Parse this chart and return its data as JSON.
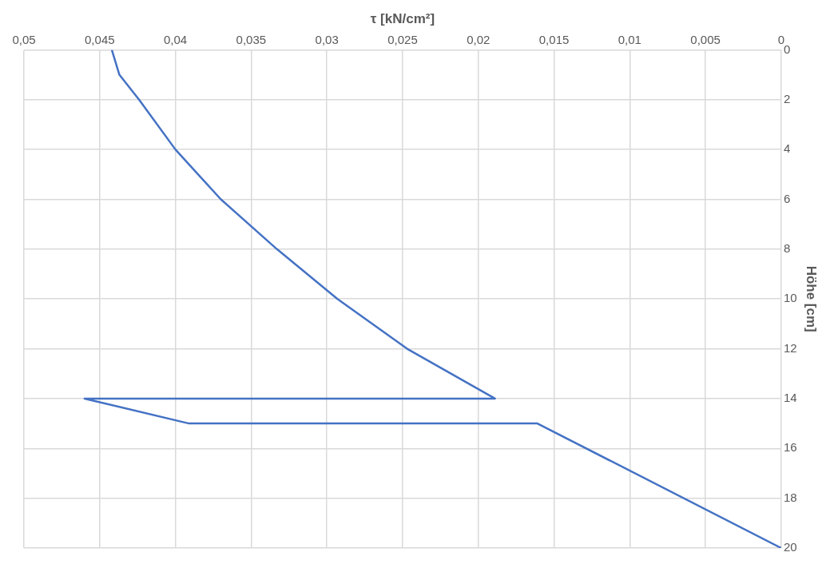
{
  "chart_data": {
    "type": "line",
    "xlabel": "τ [kN/cm²]",
    "ylabel": "Höhe [cm]",
    "x": [
      0.0442,
      0.0437,
      0.0424,
      0.04,
      0.037,
      0.0333,
      0.0293,
      0.0247,
      0.0189,
      0.046,
      0.0391,
      0.0161,
      0
    ],
    "series": [
      {
        "color": "#4472c4",
        "values": [
          0,
          1,
          2,
          4,
          6,
          8,
          10,
          12,
          14,
          14,
          15,
          15,
          20
        ]
      }
    ],
    "xlim": [
      0.05,
      0
    ],
    "ylim": [
      20,
      0
    ],
    "xticks": [
      {
        "value": 0.05,
        "label": "0,05"
      },
      {
        "value": 0.045,
        "label": "0,045"
      },
      {
        "value": 0.04,
        "label": "0,04"
      },
      {
        "value": 0.035,
        "label": "0,035"
      },
      {
        "value": 0.03,
        "label": "0,03"
      },
      {
        "value": 0.025,
        "label": "0,025"
      },
      {
        "value": 0.02,
        "label": "0,02"
      },
      {
        "value": 0.015,
        "label": "0,015"
      },
      {
        "value": 0.01,
        "label": "0,01"
      },
      {
        "value": 0.005,
        "label": "0,005"
      },
      0
    ],
    "yticks": [
      0,
      2,
      4,
      6,
      8,
      10,
      12,
      14,
      16,
      18,
      20
    ],
    "grid": true,
    "legend": false,
    "marker": "none",
    "line_style": "solid"
  }
}
